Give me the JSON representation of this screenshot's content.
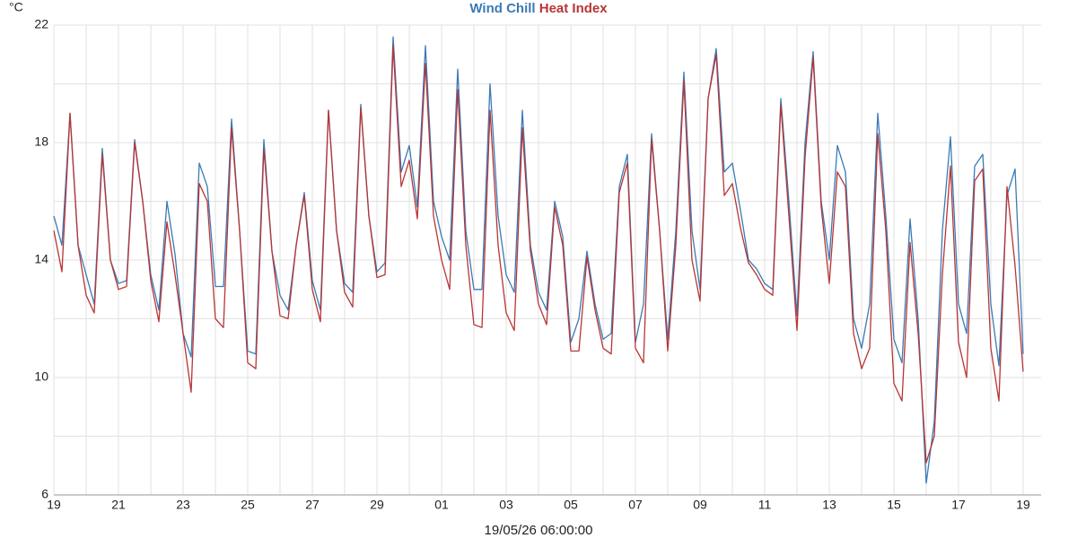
{
  "chart_data": {
    "type": "line",
    "y_unit": "°C",
    "x_label": "19/05/26 06:00:00",
    "categories": [
      "19",
      null,
      null,
      null,
      null,
      null,
      null,
      null,
      "21",
      null,
      null,
      null,
      null,
      null,
      null,
      null,
      "23",
      null,
      null,
      null,
      null,
      null,
      null,
      null,
      "25",
      null,
      null,
      null,
      null,
      null,
      null,
      null,
      "27",
      null,
      null,
      null,
      null,
      null,
      null,
      null,
      "29",
      null,
      null,
      null,
      null,
      null,
      null,
      null,
      "01",
      null,
      null,
      null,
      null,
      null,
      null,
      null,
      "03",
      null,
      null,
      null,
      null,
      null,
      null,
      null,
      "05",
      null,
      null,
      null,
      null,
      null,
      null,
      null,
      "07",
      null,
      null,
      null,
      null,
      null,
      null,
      null,
      "09",
      null,
      null,
      null,
      null,
      null,
      null,
      null,
      "11",
      null,
      null,
      null,
      null,
      null,
      null,
      null,
      "13",
      null,
      null,
      null,
      null,
      null,
      null,
      null,
      "15",
      null,
      null,
      null,
      null,
      null,
      null,
      null,
      "17",
      null,
      null,
      null,
      null,
      null,
      null,
      null,
      "19"
    ],
    "series": [
      {
        "name": "Wind Chill",
        "color": "#3a7ab5",
        "values": [
          15.5,
          14.5,
          19.0,
          14.5,
          13.5,
          12.5,
          17.8,
          14.0,
          13.2,
          13.3,
          18.1,
          16.0,
          13.5,
          12.3,
          16.0,
          14.2,
          11.5,
          10.7,
          17.3,
          16.5,
          13.1,
          13.1,
          18.8,
          15.0,
          10.9,
          10.8,
          18.1,
          14.3,
          12.8,
          12.3,
          14.5,
          16.3,
          13.3,
          12.3,
          19.1,
          15.0,
          13.2,
          12.9,
          19.3,
          15.5,
          13.6,
          13.9,
          21.6,
          17.0,
          17.9,
          15.8,
          21.3,
          16.0,
          14.8,
          14.0,
          20.5,
          15.0,
          13.0,
          13.0,
          20.0,
          15.5,
          13.5,
          12.9,
          19.1,
          14.5,
          12.9,
          12.3,
          16.0,
          14.8,
          11.2,
          12.0,
          14.3,
          12.5,
          11.3,
          11.5,
          16.5,
          17.6,
          11.2,
          12.5,
          18.3,
          15.0,
          11.3,
          15.0,
          20.4,
          15.0,
          13.0,
          19.5,
          21.2,
          17.0,
          17.3,
          15.7,
          14.0,
          13.7,
          13.2,
          13.0,
          19.5,
          16.0,
          12.1,
          18.0,
          21.1,
          16.0,
          14.0,
          17.9,
          17.0,
          12.0,
          11.0,
          12.5,
          19.0,
          15.5,
          11.3,
          10.5,
          15.4,
          12.0,
          6.4,
          8.5,
          15.0,
          18.2,
          12.5,
          11.5,
          17.2,
          17.6,
          12.5,
          10.4,
          16.2,
          17.1,
          10.8
        ]
      },
      {
        "name": "Heat Index",
        "color": "#b83535",
        "values": [
          15.0,
          13.6,
          19.0,
          14.5,
          12.8,
          12.2,
          17.6,
          14.0,
          13.0,
          13.1,
          18.0,
          16.0,
          13.3,
          11.9,
          15.3,
          13.5,
          11.5,
          9.5,
          16.6,
          16.0,
          12.0,
          11.7,
          18.5,
          15.0,
          10.5,
          10.3,
          17.8,
          14.3,
          12.1,
          12.0,
          14.5,
          16.2,
          13.0,
          11.9,
          19.1,
          15.0,
          12.9,
          12.4,
          19.2,
          15.5,
          13.4,
          13.5,
          21.3,
          16.5,
          17.4,
          15.4,
          20.7,
          15.5,
          14.0,
          13.0,
          19.8,
          14.5,
          11.8,
          11.7,
          19.1,
          14.5,
          12.2,
          11.6,
          18.5,
          14.3,
          12.5,
          11.8,
          15.8,
          14.5,
          10.9,
          10.9,
          14.1,
          12.3,
          11.0,
          10.8,
          16.3,
          17.3,
          11.0,
          10.5,
          18.1,
          15.0,
          10.9,
          14.5,
          20.1,
          14.0,
          12.6,
          19.5,
          21.0,
          16.2,
          16.6,
          15.1,
          13.9,
          13.5,
          13.0,
          12.8,
          19.3,
          15.5,
          11.6,
          17.5,
          20.9,
          15.8,
          13.2,
          17.0,
          16.5,
          11.5,
          10.3,
          11.0,
          18.3,
          15.0,
          9.8,
          9.2,
          14.6,
          11.5,
          7.1,
          8.0,
          13.5,
          17.2,
          11.2,
          10.0,
          16.7,
          17.1,
          11.0,
          9.2,
          16.5,
          13.8,
          10.2
        ]
      }
    ],
    "ylim": [
      6,
      22
    ],
    "yticks": [
      6,
      10,
      14,
      18,
      22
    ],
    "y_minor_ticks": [
      8,
      12,
      16,
      20
    ],
    "grid": true
  }
}
